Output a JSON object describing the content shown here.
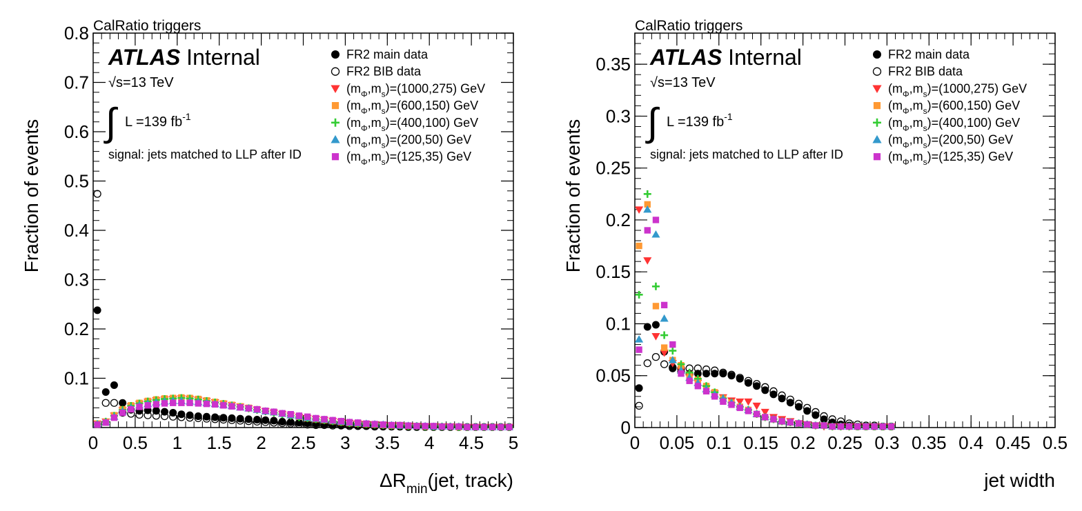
{
  "chart_data": [
    {
      "type": "scatter",
      "title": "CalRatio triggers",
      "atlas_label": "ATLAS",
      "atlas_sub": "Internal",
      "energy": "√s=13 TeV",
      "lumi_main": "L =139 fb",
      "lumi_exp": "-1",
      "note": "signal: jets matched to LLP after ID",
      "ylabel": "Fraction of events",
      "xlabel_main": "ΔR",
      "xlabel_sub": "min",
      "xlabel_rest": "(jet, track)",
      "xlim": [
        0,
        5
      ],
      "ylim": [
        0,
        0.8
      ],
      "xticks": [
        0,
        0.5,
        1,
        1.5,
        2,
        2.5,
        3,
        3.5,
        4,
        4.5,
        5
      ],
      "xticklabels": [
        "0",
        "0.5",
        "1",
        "1.5",
        "2",
        "2.5",
        "3",
        "3.5",
        "4",
        "4.5",
        "5"
      ],
      "yticks": [
        0.1,
        0.2,
        0.3,
        0.4,
        0.5,
        0.6,
        0.7,
        0.8
      ],
      "yticklabels": [
        "0.1",
        "0.2",
        "0.3",
        "0.4",
        "0.5",
        "0.6",
        "0.7",
        "0.8"
      ],
      "grid": false,
      "legend_position": "top-right",
      "x": [
        0.05,
        0.15,
        0.25,
        0.35,
        0.45,
        0.55,
        0.65,
        0.75,
        0.85,
        0.95,
        1.05,
        1.15,
        1.25,
        1.35,
        1.45,
        1.55,
        1.65,
        1.75,
        1.85,
        1.95,
        2.05,
        2.15,
        2.25,
        2.35,
        2.45,
        2.55,
        2.65,
        2.75,
        2.85,
        2.95,
        3.05,
        3.15,
        3.25,
        3.35,
        3.45,
        3.55,
        3.65,
        3.75,
        3.85,
        3.95,
        4.05,
        4.15,
        4.25,
        4.35,
        4.45,
        4.55,
        4.65,
        4.75,
        4.85,
        4.95
      ],
      "series": [
        {
          "name": "FR2 main data",
          "color": "#000000",
          "marker": "filled-circle",
          "values": [
            0.238,
            0.072,
            0.086,
            0.05,
            0.036,
            0.034,
            0.035,
            0.034,
            0.032,
            0.03,
            0.027,
            0.025,
            0.023,
            0.022,
            0.021,
            0.02,
            0.019,
            0.018,
            0.017,
            0.016,
            0.015,
            0.014,
            0.012,
            0.011,
            0.01,
            0.009,
            0.008,
            0.007,
            0.006,
            0.005,
            0.005,
            0.004,
            0.004,
            0.003,
            0.003,
            0.003,
            0.002,
            0.002,
            0.002,
            0.002,
            0.001,
            0.001,
            0.001,
            0.001,
            0.001,
            0.001,
            0.001,
            0.001,
            0.001,
            0.001
          ]
        },
        {
          "name": "FR2 BIB data",
          "color": "#000000",
          "marker": "open-circle",
          "values": [
            0.474,
            0.05,
            0.05,
            0.03,
            0.028,
            0.026,
            0.025,
            0.024,
            0.023,
            0.022,
            0.021,
            0.02,
            0.019,
            0.018,
            0.017,
            0.016,
            0.015,
            0.014,
            0.013,
            0.012,
            0.011,
            0.01,
            0.009,
            0.008,
            0.007,
            0.006,
            0.005,
            0.005,
            0.004,
            0.004,
            0.003,
            0.003,
            0.003,
            0.002,
            0.002,
            0.002,
            0.002,
            0.001,
            0.001,
            0.001,
            0.001,
            0.001,
            0.001,
            0.001,
            0.001,
            0.001,
            0.001,
            0.001,
            0.001,
            0.001
          ]
        },
        {
          "name": "(mΦ,ms)=(1000,275) GeV",
          "label_pre": "(m",
          "sub1": "Φ",
          "label_mid": ",m",
          "sub2": "s",
          "label_post": ")=(1000,275) GeV",
          "color": "#ff3333",
          "marker": "triangle-down",
          "values": [
            0.008,
            0.012,
            0.024,
            0.035,
            0.043,
            0.048,
            0.052,
            0.055,
            0.057,
            0.058,
            0.059,
            0.058,
            0.056,
            0.054,
            0.051,
            0.048,
            0.045,
            0.042,
            0.039,
            0.036,
            0.033,
            0.03,
            0.027,
            0.024,
            0.021,
            0.019,
            0.017,
            0.015,
            0.013,
            0.011,
            0.009,
            0.008,
            0.007,
            0.006,
            0.005,
            0.004,
            0.004,
            0.003,
            0.003,
            0.002,
            0.002,
            0.002,
            0.002,
            0.001,
            0.001,
            0.001,
            0.001,
            0.001,
            0.001,
            0.001
          ]
        },
        {
          "name": "(mΦ,ms)=(600,150) GeV",
          "label_pre": "(m",
          "sub1": "Φ",
          "label_mid": ",m",
          "sub2": "s",
          "label_post": ")=(600,150) GeV",
          "color": "#ff9933",
          "marker": "square",
          "values": [
            0.008,
            0.012,
            0.025,
            0.037,
            0.045,
            0.05,
            0.054,
            0.057,
            0.059,
            0.06,
            0.061,
            0.06,
            0.058,
            0.055,
            0.052,
            0.049,
            0.046,
            0.043,
            0.04,
            0.037,
            0.034,
            0.031,
            0.028,
            0.025,
            0.022,
            0.019,
            0.017,
            0.015,
            0.013,
            0.011,
            0.009,
            0.008,
            0.007,
            0.006,
            0.005,
            0.004,
            0.004,
            0.003,
            0.003,
            0.002,
            0.002,
            0.002,
            0.002,
            0.001,
            0.001,
            0.001,
            0.001,
            0.001,
            0.001,
            0.001
          ]
        },
        {
          "name": "(mΦ,ms)=(400,100) GeV",
          "label_pre": "(m",
          "sub1": "Φ",
          "label_mid": ",m",
          "sub2": "s",
          "label_post": ")=(400,100) GeV",
          "color": "#33cc33",
          "marker": "cross",
          "values": [
            0.007,
            0.012,
            0.024,
            0.036,
            0.044,
            0.049,
            0.053,
            0.056,
            0.058,
            0.059,
            0.06,
            0.059,
            0.057,
            0.054,
            0.051,
            0.048,
            0.045,
            0.042,
            0.039,
            0.036,
            0.033,
            0.03,
            0.027,
            0.024,
            0.021,
            0.019,
            0.017,
            0.015,
            0.013,
            0.011,
            0.009,
            0.008,
            0.007,
            0.006,
            0.005,
            0.004,
            0.004,
            0.003,
            0.003,
            0.002,
            0.002,
            0.002,
            0.002,
            0.001,
            0.001,
            0.001,
            0.001,
            0.001,
            0.001,
            0.001
          ]
        },
        {
          "name": "(mΦ,ms)=(200,50) GeV",
          "label_pre": "(m",
          "sub1": "Φ",
          "label_mid": ",m",
          "sub2": "s",
          "label_post": ")=(200,50) GeV",
          "color": "#3399cc",
          "marker": "triangle-up",
          "values": [
            0.007,
            0.011,
            0.022,
            0.033,
            0.04,
            0.045,
            0.048,
            0.051,
            0.053,
            0.054,
            0.054,
            0.053,
            0.052,
            0.05,
            0.048,
            0.046,
            0.044,
            0.041,
            0.039,
            0.036,
            0.033,
            0.031,
            0.028,
            0.025,
            0.023,
            0.02,
            0.018,
            0.016,
            0.014,
            0.012,
            0.01,
            0.009,
            0.008,
            0.007,
            0.006,
            0.005,
            0.004,
            0.004,
            0.003,
            0.003,
            0.002,
            0.002,
            0.002,
            0.002,
            0.001,
            0.001,
            0.001,
            0.001,
            0.001,
            0.001
          ]
        },
        {
          "name": "(mΦ,ms)=(125,35) GeV",
          "label_pre": "(m",
          "sub1": "Φ",
          "label_mid": ",m",
          "sub2": "s",
          "label_post": ")=(125,35) GeV",
          "color": "#cc33cc",
          "marker": "square",
          "values": [
            0.006,
            0.01,
            0.02,
            0.03,
            0.037,
            0.042,
            0.045,
            0.047,
            0.049,
            0.05,
            0.05,
            0.05,
            0.049,
            0.048,
            0.047,
            0.045,
            0.043,
            0.041,
            0.039,
            0.037,
            0.034,
            0.032,
            0.029,
            0.027,
            0.024,
            0.022,
            0.019,
            0.017,
            0.015,
            0.013,
            0.011,
            0.01,
            0.008,
            0.007,
            0.006,
            0.005,
            0.005,
            0.004,
            0.003,
            0.003,
            0.003,
            0.002,
            0.002,
            0.002,
            0.001,
            0.001,
            0.001,
            0.001,
            0.001,
            0.001
          ]
        }
      ]
    },
    {
      "type": "scatter",
      "title": "CalRatio triggers",
      "atlas_label": "ATLAS",
      "atlas_sub": "Internal",
      "energy": "√s=13 TeV",
      "lumi_main": "L =139 fb",
      "lumi_exp": "-1",
      "note": "signal: jets matched to LLP after ID",
      "ylabel": "Fraction of events",
      "xlabel_main": "jet width",
      "xlim": [
        0,
        0.5
      ],
      "ylim": [
        0,
        0.38
      ],
      "xticks": [
        0,
        0.05,
        0.1,
        0.15,
        0.2,
        0.25,
        0.3,
        0.35,
        0.4,
        0.45,
        0.5
      ],
      "xticklabels": [
        "0",
        "0.05",
        "0.1",
        "0.15",
        "0.2",
        "0.25",
        "0.3",
        "0.35",
        "0.4",
        "0.45",
        "0.5"
      ],
      "yticks": [
        0,
        0.05,
        0.1,
        0.15,
        0.2,
        0.25,
        0.3,
        0.35
      ],
      "yticklabels": [
        "0",
        "0.05",
        "0.1",
        "0.15",
        "0.2",
        "0.25",
        "0.3",
        "0.35"
      ],
      "grid": false,
      "legend_position": "top-right",
      "x": [
        0.005,
        0.015,
        0.025,
        0.035,
        0.045,
        0.055,
        0.065,
        0.075,
        0.085,
        0.095,
        0.105,
        0.115,
        0.125,
        0.135,
        0.145,
        0.155,
        0.165,
        0.175,
        0.185,
        0.195,
        0.205,
        0.215,
        0.225,
        0.235,
        0.245,
        0.255,
        0.265,
        0.275,
        0.285,
        0.295,
        0.305
      ],
      "series": [
        {
          "name": "FR2 main data",
          "color": "#000000",
          "marker": "filled-circle",
          "values": [
            0.038,
            0.097,
            0.099,
            0.073,
            0.057,
            0.054,
            0.052,
            0.052,
            0.052,
            0.052,
            0.052,
            0.05,
            0.047,
            0.043,
            0.04,
            0.036,
            0.032,
            0.028,
            0.024,
            0.02,
            0.016,
            0.012,
            0.008,
            0.005,
            0.003,
            0.002,
            0.001,
            0.001,
            0.001,
            0.001,
            0.001
          ]
        },
        {
          "name": "FR2 BIB data",
          "color": "#000000",
          "marker": "open-circle",
          "values": [
            0.021,
            0.062,
            0.068,
            0.061,
            0.058,
            0.057,
            0.057,
            0.057,
            0.056,
            0.055,
            0.053,
            0.051,
            0.048,
            0.045,
            0.042,
            0.039,
            0.035,
            0.031,
            0.027,
            0.023,
            0.019,
            0.015,
            0.011,
            0.008,
            0.006,
            0.004,
            0.003,
            0.002,
            0.002,
            0.001,
            0.001
          ]
        },
        {
          "name": "(mΦ,ms)=(1000,275) GeV",
          "label_pre": "(m",
          "sub1": "Φ",
          "label_mid": ",m",
          "sub2": "s",
          "label_post": ")=(1000,275) GeV",
          "color": "#ff3333",
          "marker": "triangle-down",
          "values": [
            0.21,
            0.161,
            0.088,
            0.072,
            0.062,
            0.055,
            0.048,
            0.043,
            0.038,
            0.033,
            0.029,
            0.026,
            0.025,
            0.025,
            0.021,
            0.015,
            0.01,
            0.008,
            0.006,
            0.004,
            0.003,
            0.002,
            0.001,
            0.001,
            0.001,
            0.001,
            0.001,
            0.001,
            0.001,
            0.001,
            0.001
          ]
        },
        {
          "name": "(mΦ,ms)=(600,150) GeV",
          "label_pre": "(m",
          "sub1": "Φ",
          "label_mid": ",m",
          "sub2": "s",
          "label_post": ")=(600,150) GeV",
          "color": "#ff9933",
          "marker": "square",
          "values": [
            0.175,
            0.215,
            0.117,
            0.077,
            0.065,
            0.06,
            0.051,
            0.046,
            0.04,
            0.034,
            0.028,
            0.024,
            0.02,
            0.017,
            0.013,
            0.01,
            0.008,
            0.006,
            0.005,
            0.004,
            0.003,
            0.002,
            0.002,
            0.001,
            0.001,
            0.001,
            0.001,
            0.001,
            0.001,
            0.001,
            0.001
          ]
        },
        {
          "name": "(mΦ,ms)=(400,100) GeV",
          "label_pre": "(m",
          "sub1": "Φ",
          "label_mid": ",m",
          "sub2": "s",
          "label_post": ")=(400,100) GeV",
          "color": "#33cc33",
          "marker": "cross",
          "values": [
            0.128,
            0.225,
            0.136,
            0.089,
            0.074,
            0.061,
            0.053,
            0.047,
            0.04,
            0.034,
            0.028,
            0.024,
            0.02,
            0.017,
            0.013,
            0.01,
            0.008,
            0.006,
            0.005,
            0.004,
            0.003,
            0.002,
            0.002,
            0.001,
            0.001,
            0.001,
            0.001,
            0.001,
            0.001,
            0.001,
            0.001
          ]
        },
        {
          "name": "(mΦ,ms)=(200,50) GeV",
          "label_pre": "(m",
          "sub1": "Φ",
          "label_mid": ",m",
          "sub2": "s",
          "label_post": ")=(200,50) GeV",
          "color": "#3399cc",
          "marker": "triangle-up",
          "values": [
            0.085,
            0.21,
            0.186,
            0.105,
            0.065,
            0.055,
            0.048,
            0.043,
            0.037,
            0.032,
            0.028,
            0.024,
            0.02,
            0.017,
            0.013,
            0.01,
            0.008,
            0.006,
            0.005,
            0.004,
            0.003,
            0.002,
            0.002,
            0.001,
            0.001,
            0.001,
            0.001,
            0.001,
            0.001,
            0.001,
            0.001
          ]
        },
        {
          "name": "(mΦ,ms)=(125,35) GeV",
          "label_pre": "(m",
          "sub1": "Φ",
          "label_mid": ",m",
          "sub2": "s",
          "label_post": ")=(125,35) GeV",
          "color": "#cc33cc",
          "marker": "square",
          "values": [
            0.075,
            0.19,
            0.2,
            0.118,
            0.08,
            0.052,
            0.045,
            0.04,
            0.035,
            0.03,
            0.025,
            0.022,
            0.019,
            0.016,
            0.013,
            0.01,
            0.008,
            0.006,
            0.005,
            0.004,
            0.003,
            0.002,
            0.002,
            0.001,
            0.001,
            0.001,
            0.001,
            0.001,
            0.001,
            0.001,
            0.001
          ]
        }
      ]
    }
  ]
}
